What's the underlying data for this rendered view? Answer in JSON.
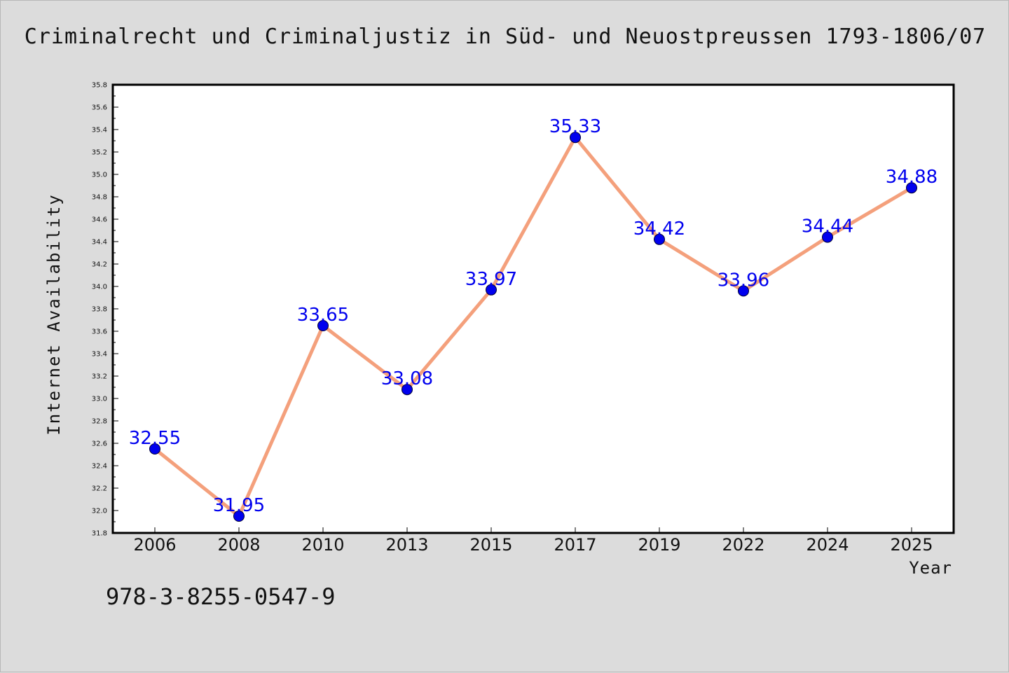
{
  "chart_data": {
    "type": "line",
    "title": "Criminalrecht und Criminaljustiz in Süd- und Neuostpreussen 1793-1806/07",
    "xlabel": "Year",
    "ylabel": "Internet Availability",
    "categories": [
      "2006",
      "2008",
      "2010",
      "2013",
      "2015",
      "2017",
      "2019",
      "2022",
      "2024",
      "2025"
    ],
    "series": [
      {
        "values": [
          32.55,
          31.95,
          33.65,
          33.08,
          33.97,
          35.33,
          34.42,
          33.96,
          34.44,
          34.88
        ],
        "line_color": "#f4a07c",
        "marker_color": "#0000ee",
        "label_color": "#0000ee"
      }
    ],
    "ylim": [
      31.8,
      35.8
    ],
    "y_ticks": [
      "31.8",
      "32.0",
      "32.2",
      "32.4",
      "32.6",
      "32.8",
      "33.0",
      "33.2",
      "33.4",
      "33.6",
      "33.8",
      "34.0",
      "34.2",
      "34.4",
      "34.6",
      "34.8",
      "35.0",
      "35.2",
      "35.4",
      "35.6",
      "35.8"
    ],
    "grid": false,
    "legend": "none",
    "background_color": "#dcdcdc",
    "plot_background_color": "#ffffff"
  },
  "annotation": "978-3-8255-0547-9"
}
